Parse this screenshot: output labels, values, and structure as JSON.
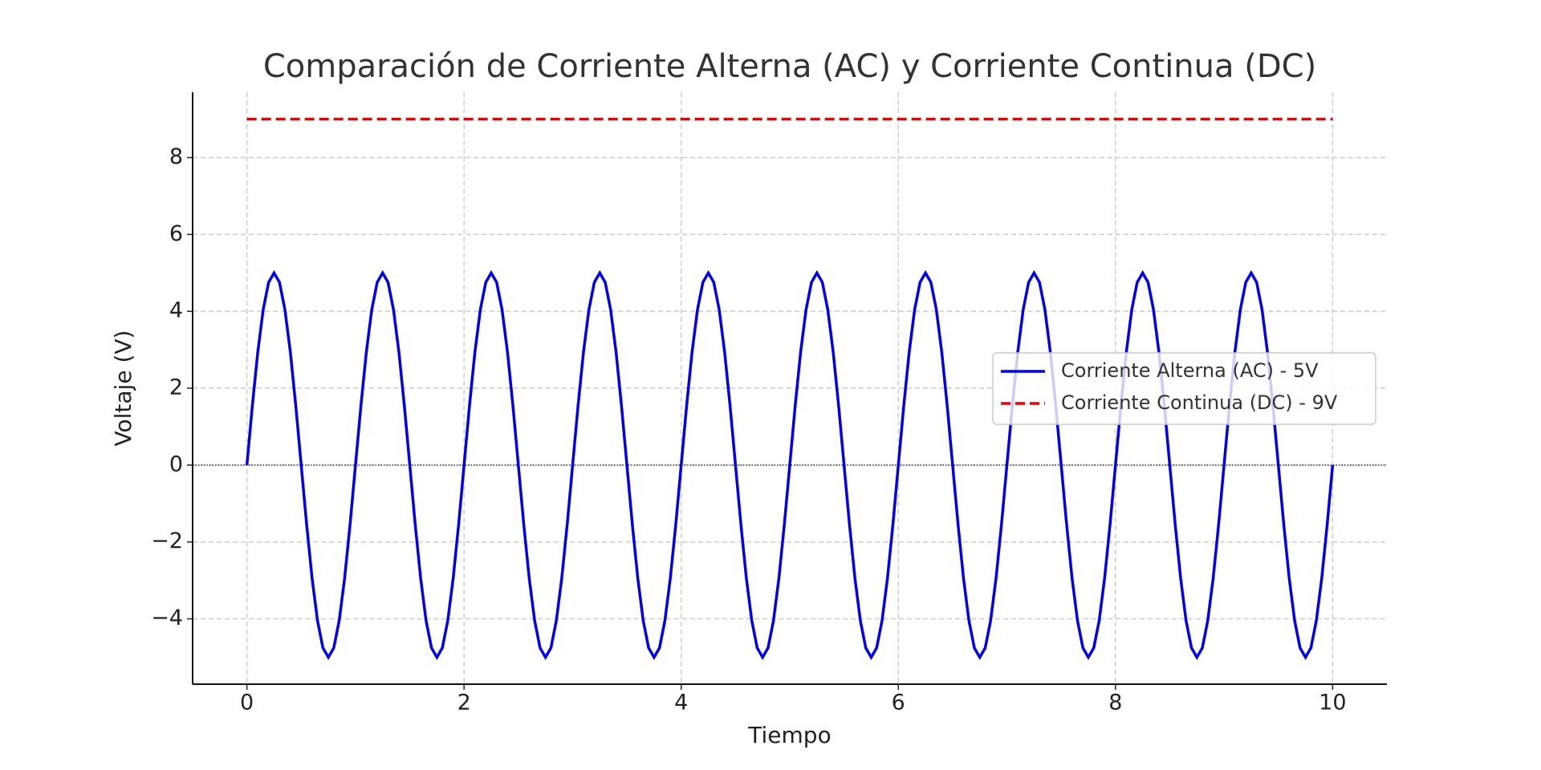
{
  "chart_data": {
    "type": "line",
    "title": "Comparación de Corriente Alterna (AC) y Corriente Continua (DC)",
    "xlabel": "Tiempo",
    "ylabel": "Voltaje (V)",
    "xlim": [
      -0.5,
      10.5
    ],
    "ylim": [
      -5.7,
      9.7
    ],
    "xticks": [
      0,
      2,
      4,
      6,
      8,
      10
    ],
    "yticks": [
      {
        "value": -4,
        "label": "−4"
      },
      {
        "value": -2,
        "label": "−2"
      },
      0,
      2,
      4,
      6,
      8
    ],
    "grid": true,
    "reference_line": 0,
    "legend": "center right",
    "series": [
      {
        "name": "Corriente Alterna (AC) - 5V",
        "color": "#0000ee",
        "dash": false,
        "x": [
          0,
          0.05,
          0.1,
          0.15,
          0.2,
          0.25,
          0.3,
          0.35,
          0.4,
          0.45,
          0.5,
          0.55,
          0.6,
          0.65,
          0.7,
          0.75,
          0.8,
          0.85,
          0.9,
          0.95,
          1,
          1.05,
          1.1,
          1.15,
          1.2,
          1.25,
          1.3,
          1.35,
          1.4,
          1.45,
          1.5,
          1.55,
          1.6,
          1.65,
          1.7,
          1.75,
          1.8,
          1.85,
          1.9,
          1.95,
          2,
          2.05,
          2.1,
          2.15,
          2.2,
          2.25,
          2.3,
          2.35,
          2.4,
          2.45,
          2.5,
          2.55,
          2.6,
          2.65,
          2.7,
          2.75,
          2.8,
          2.85,
          2.9,
          2.95,
          3,
          3.05,
          3.1,
          3.15,
          3.2,
          3.25,
          3.3,
          3.35,
          3.4,
          3.45,
          3.5,
          3.55,
          3.6,
          3.65,
          3.7,
          3.75,
          3.8,
          3.85,
          3.9,
          3.95,
          4,
          4.05,
          4.1,
          4.15,
          4.2,
          4.25,
          4.3,
          4.35,
          4.4,
          4.45,
          4.5,
          4.55,
          4.6,
          4.65,
          4.7,
          4.75,
          4.8,
          4.85,
          4.9,
          4.95,
          5,
          5.05,
          5.1,
          5.15,
          5.2,
          5.25,
          5.3,
          5.35,
          5.4,
          5.45,
          5.5,
          5.55,
          5.6,
          5.65,
          5.7,
          5.75,
          5.8,
          5.85,
          5.9,
          5.95,
          6,
          6.05,
          6.1,
          6.15,
          6.2,
          6.25,
          6.3,
          6.35,
          6.4,
          6.45,
          6.5,
          6.55,
          6.6,
          6.65,
          6.7,
          6.75,
          6.8,
          6.85,
          6.9,
          6.95,
          7,
          7.05,
          7.1,
          7.15,
          7.2,
          7.25,
          7.3,
          7.35,
          7.4,
          7.45,
          7.5,
          7.55,
          7.6,
          7.65,
          7.7,
          7.75,
          7.8,
          7.85,
          7.9,
          7.95,
          8,
          8.05,
          8.1,
          8.15,
          8.2,
          8.25,
          8.3,
          8.35,
          8.4,
          8.45,
          8.5,
          8.55,
          8.6,
          8.65,
          8.7,
          8.75,
          8.8,
          8.85,
          8.9,
          8.95,
          9,
          9.05,
          9.1,
          9.15,
          9.2,
          9.25,
          9.3,
          9.35,
          9.4,
          9.45,
          9.5,
          9.55,
          9.6,
          9.65,
          9.7,
          9.75,
          9.8,
          9.85,
          9.9,
          9.95,
          10
        ],
        "values": [
          0,
          1.545,
          2.939,
          4.045,
          4.755,
          5,
          4.755,
          4.045,
          2.939,
          1.545,
          0,
          -1.545,
          -2.939,
          -4.045,
          -4.755,
          -5,
          -4.755,
          -4.045,
          -2.939,
          -1.545,
          0,
          1.545,
          2.939,
          4.045,
          4.755,
          5,
          4.755,
          4.045,
          2.939,
          1.545,
          0,
          -1.545,
          -2.939,
          -4.045,
          -4.755,
          -5,
          -4.755,
          -4.045,
          -2.939,
          -1.545,
          0,
          1.545,
          2.939,
          4.045,
          4.755,
          5,
          4.755,
          4.045,
          2.939,
          1.545,
          0,
          -1.545,
          -2.939,
          -4.045,
          -4.755,
          -5,
          -4.755,
          -4.045,
          -2.939,
          -1.545,
          0,
          1.545,
          2.939,
          4.045,
          4.755,
          5,
          4.755,
          4.045,
          2.939,
          1.545,
          0,
          -1.545,
          -2.939,
          -4.045,
          -4.755,
          -5,
          -4.755,
          -4.045,
          -2.939,
          -1.545,
          0,
          1.545,
          2.939,
          4.045,
          4.755,
          5,
          4.755,
          4.045,
          2.939,
          1.545,
          0,
          -1.545,
          -2.939,
          -4.045,
          -4.755,
          -5,
          -4.755,
          -4.045,
          -2.939,
          -1.545,
          0,
          1.545,
          2.939,
          4.045,
          4.755,
          5,
          4.755,
          4.045,
          2.939,
          1.545,
          0,
          -1.545,
          -2.939,
          -4.045,
          -4.755,
          -5,
          -4.755,
          -4.045,
          -2.939,
          -1.545,
          0,
          1.545,
          2.939,
          4.045,
          4.755,
          5,
          4.755,
          4.045,
          2.939,
          1.545,
          0,
          -1.545,
          -2.939,
          -4.045,
          -4.755,
          -5,
          -4.755,
          -4.045,
          -2.939,
          -1.545,
          0,
          1.545,
          2.939,
          4.045,
          4.755,
          5,
          4.755,
          4.045,
          2.939,
          1.545,
          0,
          -1.545,
          -2.939,
          -4.045,
          -4.755,
          -5,
          -4.755,
          -4.045,
          -2.939,
          -1.545,
          0,
          1.545,
          2.939,
          4.045,
          4.755,
          5,
          4.755,
          4.045,
          2.939,
          1.545,
          0,
          -1.545,
          -2.939,
          -4.045,
          -4.755,
          -5,
          -4.755,
          -4.045,
          -2.939,
          -1.545,
          0,
          1.545,
          2.939,
          4.045,
          4.755,
          5,
          4.755,
          4.045,
          2.939,
          1.545,
          0,
          -1.545,
          -2.939,
          -4.045,
          -4.755,
          -5,
          -4.755,
          -4.045,
          -2.939,
          -1.545,
          0
        ]
      },
      {
        "name": "Corriente Continua (DC) - 9V",
        "color": "#ee0000",
        "dash": true,
        "x": [
          0,
          10
        ],
        "values": [
          9,
          9
        ]
      }
    ]
  }
}
